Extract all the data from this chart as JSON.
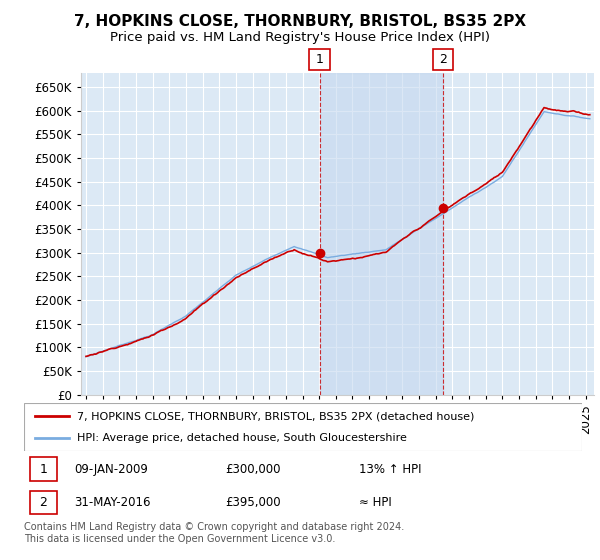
{
  "title": "7, HOPKINS CLOSE, THORNBURY, BRISTOL, BS35 2PX",
  "subtitle": "Price paid vs. HM Land Registry's House Price Index (HPI)",
  "ylim": [
    0,
    680000
  ],
  "xlim_start": 1994.7,
  "xlim_end": 2025.5,
  "background_color": "#ffffff",
  "plot_bg_color": "#dce9f5",
  "plot_bg_color2": "#c5d8ef",
  "grid_color": "#ffffff",
  "red_line_color": "#cc0000",
  "blue_line_color": "#7aace0",
  "marker1_x": 2009.03,
  "marker1_y": 300000,
  "marker2_x": 2016.42,
  "marker2_y": 395000,
  "legend_line1": "7, HOPKINS CLOSE, THORNBURY, BRISTOL, BS35 2PX (detached house)",
  "legend_line2": "HPI: Average price, detached house, South Gloucestershire",
  "footer": "Contains HM Land Registry data © Crown copyright and database right 2024.\nThis data is licensed under the Open Government Licence v3.0.",
  "title_fontsize": 11,
  "subtitle_fontsize": 9.5,
  "tick_fontsize": 8.5
}
